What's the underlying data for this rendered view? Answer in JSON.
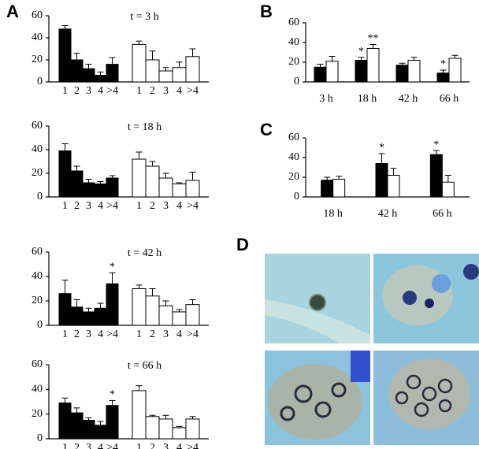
{
  "panel_labels": [
    "A",
    "B",
    "C",
    "D"
  ],
  "chart_data": [
    {
      "type": "bar",
      "title": "t = 3 h",
      "categories": [
        "1",
        "2",
        "3",
        "4",
        ">4",
        "1",
        "2",
        "3",
        "4",
        ">4"
      ],
      "series": [
        {
          "color": "#000000",
          "values": [
            48,
            20,
            12,
            6,
            16,
            null,
            null,
            null,
            null,
            null
          ],
          "errors": [
            3,
            6,
            4,
            3,
            6,
            null,
            null,
            null,
            null,
            null
          ]
        },
        {
          "color": "#ffffff",
          "values": [
            null,
            null,
            null,
            null,
            null,
            34,
            20,
            10,
            13,
            23
          ],
          "errors": [
            null,
            null,
            null,
            null,
            null,
            3,
            8,
            3,
            5,
            7
          ]
        }
      ],
      "ylim": [
        0,
        60
      ],
      "yticks": [
        0,
        20,
        40,
        60
      ]
    },
    {
      "type": "bar",
      "title": "t = 18 h",
      "categories": [
        "1",
        "2",
        "3",
        "4",
        ">4",
        "1",
        "2",
        "3",
        "4",
        ">4"
      ],
      "series": [
        {
          "color": "#000000",
          "values": [
            39,
            22,
            12,
            11,
            16,
            null,
            null,
            null,
            null,
            null
          ],
          "errors": [
            6,
            4,
            3,
            2,
            2,
            null,
            null,
            null,
            null,
            null
          ]
        },
        {
          "color": "#ffffff",
          "values": [
            null,
            null,
            null,
            null,
            null,
            32,
            26,
            16,
            11,
            14
          ],
          "errors": [
            null,
            null,
            null,
            null,
            null,
            6,
            4,
            4,
            1,
            7
          ]
        }
      ],
      "ylim": [
        0,
        60
      ],
      "yticks": [
        0,
        20,
        40,
        60
      ]
    },
    {
      "type": "bar",
      "title": "t = 42 h",
      "categories": [
        "1",
        "2",
        "3",
        "4",
        ">4",
        "1",
        "2",
        "3",
        "4",
        ">4"
      ],
      "series": [
        {
          "color": "#000000",
          "values": [
            26,
            15,
            11,
            14,
            34,
            null,
            null,
            null,
            null,
            null
          ],
          "errors": [
            11,
            6,
            3,
            4,
            9,
            null,
            null,
            null,
            null,
            null
          ],
          "significance": [
            null,
            null,
            null,
            null,
            "*",
            null,
            null,
            null,
            null,
            null
          ]
        },
        {
          "color": "#ffffff",
          "values": [
            null,
            null,
            null,
            null,
            null,
            30,
            24,
            16,
            11,
            17
          ],
          "errors": [
            null,
            null,
            null,
            null,
            null,
            3,
            6,
            4,
            2,
            4
          ]
        }
      ],
      "ylim": [
        0,
        60
      ],
      "yticks": [
        0,
        20,
        40,
        60
      ]
    },
    {
      "type": "bar",
      "title": "t = 66 h",
      "categories": [
        "1",
        "2",
        "3",
        "4",
        ">4",
        "1",
        "2",
        "3",
        "4",
        ">4"
      ],
      "series": [
        {
          "color": "#000000",
          "values": [
            29,
            21,
            15,
            11,
            27,
            null,
            null,
            null,
            null,
            null
          ],
          "errors": [
            4,
            4,
            2,
            3,
            4,
            null,
            null,
            null,
            null,
            null
          ],
          "significance": [
            null,
            null,
            null,
            null,
            "*",
            null,
            null,
            null,
            null,
            null
          ]
        },
        {
          "color": "#ffffff",
          "values": [
            null,
            null,
            null,
            null,
            null,
            39,
            18,
            16,
            9,
            16
          ],
          "errors": [
            null,
            null,
            null,
            null,
            null,
            4,
            1,
            3,
            1,
            2
          ]
        }
      ],
      "ylim": [
        0,
        60
      ],
      "yticks": [
        0,
        20,
        40,
        60
      ]
    },
    {
      "type": "grouped-bar",
      "categories": [
        "3 h",
        "18 h",
        "42 h",
        "66 h"
      ],
      "series": [
        {
          "color": "#000000",
          "values": [
            15,
            22,
            17,
            9
          ],
          "errors": [
            3,
            3,
            2,
            3
          ],
          "significance": [
            null,
            "*",
            null,
            "*"
          ]
        },
        {
          "color": "#ffffff",
          "values": [
            21,
            34,
            22,
            24
          ],
          "errors": [
            5,
            4,
            3,
            3
          ],
          "significance": [
            null,
            "**",
            null,
            null
          ]
        }
      ],
      "ylim": [
        0,
        60
      ],
      "yticks": [
        0,
        20,
        40,
        60
      ]
    },
    {
      "type": "grouped-bar",
      "categories": [
        "18 h",
        "42 h",
        "66 h"
      ],
      "series": [
        {
          "color": "#000000",
          "values": [
            17,
            34,
            43
          ],
          "errors": [
            3,
            10,
            4
          ],
          "significance": [
            null,
            "*",
            "*"
          ]
        },
        {
          "color": "#ffffff",
          "values": [
            18,
            22,
            15
          ],
          "errors": [
            3,
            7,
            7
          ]
        }
      ],
      "ylim": [
        0,
        60
      ],
      "yticks": [
        0,
        20,
        40,
        60
      ]
    }
  ]
}
